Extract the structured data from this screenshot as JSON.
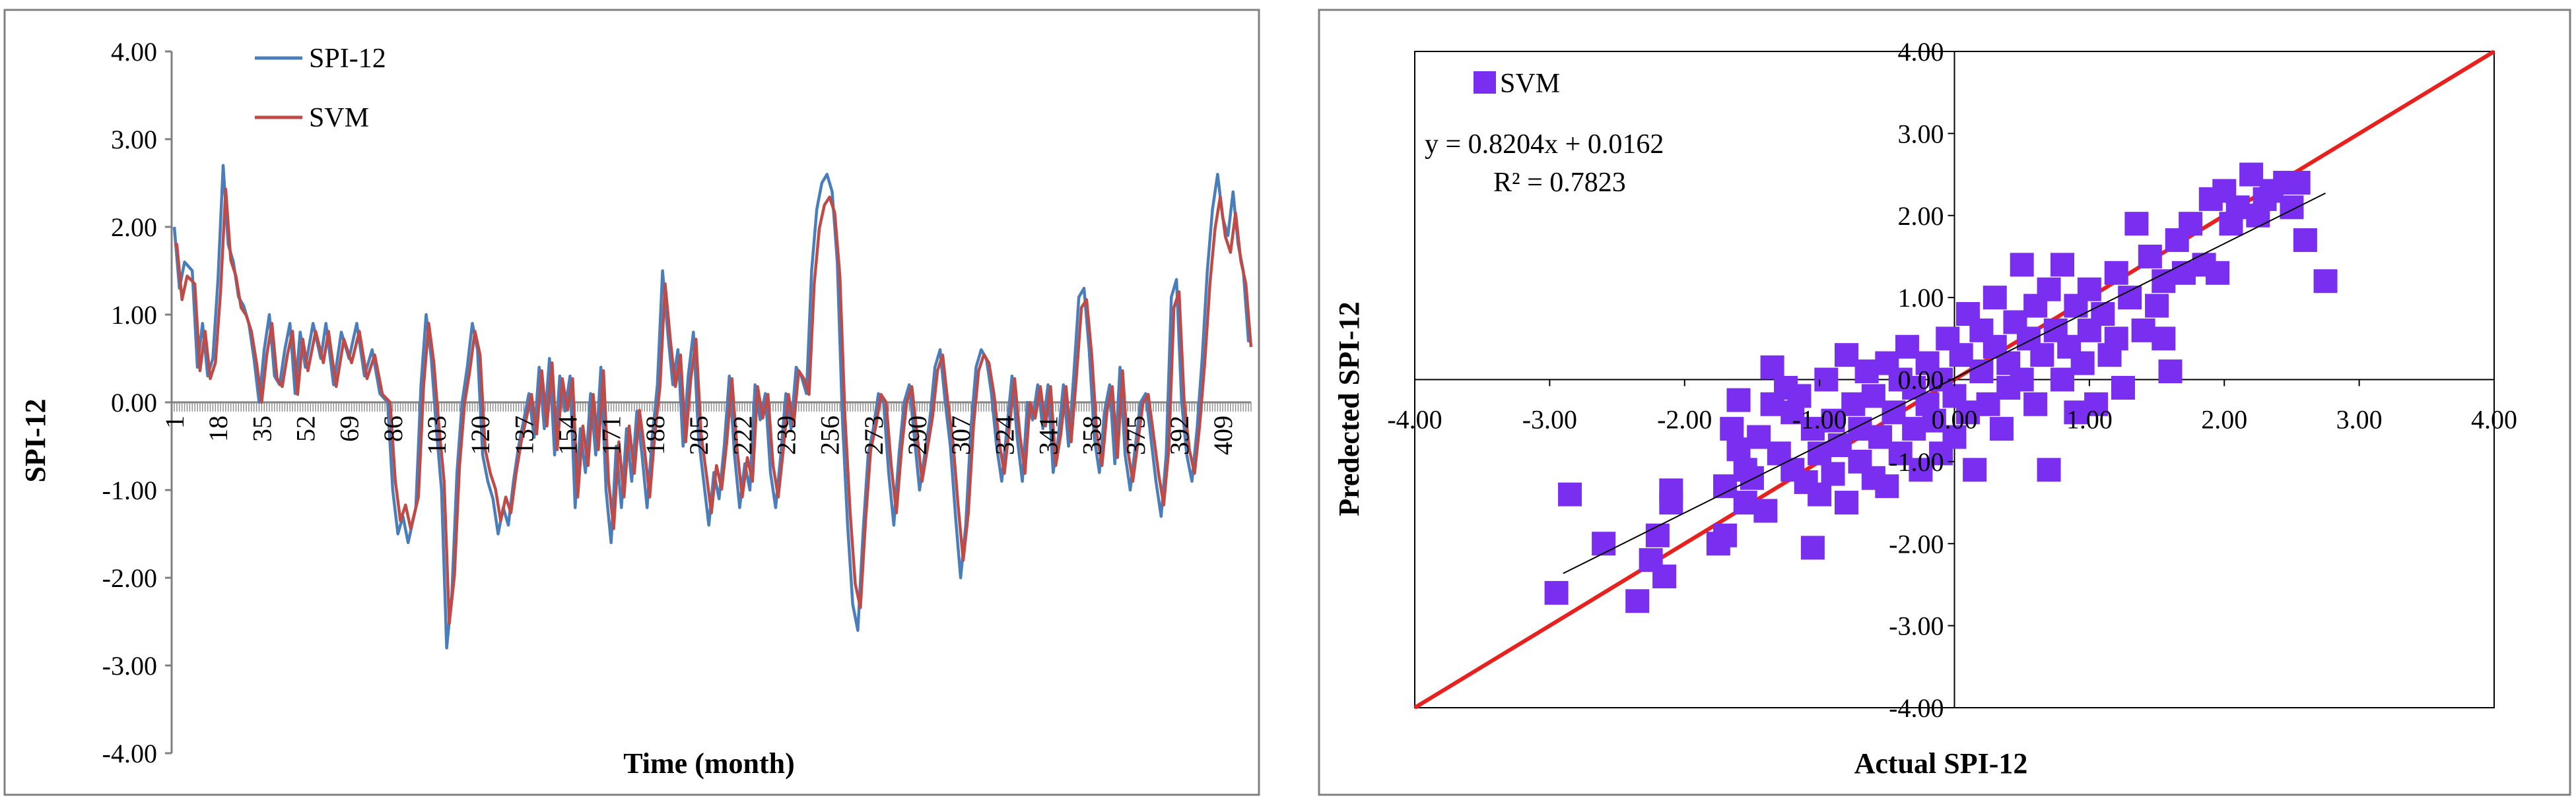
{
  "chart_data": [
    {
      "type": "line",
      "xlabel": "Time (month)",
      "ylabel": "SPI-12",
      "ylim": [
        -4,
        4
      ],
      "ytick_labels": [
        "4.00",
        "3.00",
        "2.00",
        "1.00",
        "0.00",
        "-1.00",
        "-2.00",
        "-3.00",
        "-4.00"
      ],
      "xlim": [
        1,
        420
      ],
      "xtick_labels": [
        "1",
        "18",
        "35",
        "52",
        "69",
        "86",
        "103",
        "120",
        "137",
        "154",
        "171",
        "188",
        "205",
        "222",
        "239",
        "256",
        "273",
        "290",
        "307",
        "324",
        "341",
        "358",
        "375",
        "392",
        "409"
      ],
      "anchors": [
        [
          1,
          2.0
        ],
        [
          3,
          1.3
        ],
        [
          5,
          1.6
        ],
        [
          8,
          1.5
        ],
        [
          10,
          0.4
        ],
        [
          12,
          0.9
        ],
        [
          14,
          0.3
        ],
        [
          16,
          0.5
        ],
        [
          18,
          1.4
        ],
        [
          20,
          2.7
        ],
        [
          22,
          1.8
        ],
        [
          24,
          1.6
        ],
        [
          26,
          1.2
        ],
        [
          28,
          1.1
        ],
        [
          30,
          0.9
        ],
        [
          32,
          0.5
        ],
        [
          34,
          0.0
        ],
        [
          36,
          0.6
        ],
        [
          38,
          1.0
        ],
        [
          40,
          0.3
        ],
        [
          42,
          0.2
        ],
        [
          44,
          0.6
        ],
        [
          46,
          0.9
        ],
        [
          48,
          0.1
        ],
        [
          50,
          0.8
        ],
        [
          52,
          0.4
        ],
        [
          55,
          0.9
        ],
        [
          58,
          0.5
        ],
        [
          60,
          0.9
        ],
        [
          63,
          0.2
        ],
        [
          66,
          0.8
        ],
        [
          69,
          0.5
        ],
        [
          72,
          0.9
        ],
        [
          75,
          0.3
        ],
        [
          78,
          0.6
        ],
        [
          81,
          0.1
        ],
        [
          84,
          0.0
        ],
        [
          86,
          -1.0
        ],
        [
          88,
          -1.5
        ],
        [
          90,
          -1.3
        ],
        [
          92,
          -1.6
        ],
        [
          95,
          -1.2
        ],
        [
          97,
          0.2
        ],
        [
          99,
          1.0
        ],
        [
          101,
          0.5
        ],
        [
          103,
          -0.3
        ],
        [
          105,
          -1.0
        ],
        [
          107,
          -2.8
        ],
        [
          109,
          -2.2
        ],
        [
          111,
          -0.8
        ],
        [
          113,
          0.0
        ],
        [
          115,
          0.4
        ],
        [
          117,
          0.9
        ],
        [
          119,
          0.6
        ],
        [
          121,
          -0.6
        ],
        [
          123,
          -0.9
        ],
        [
          125,
          -1.1
        ],
        [
          127,
          -1.5
        ],
        [
          129,
          -1.2
        ],
        [
          131,
          -1.4
        ],
        [
          133,
          -0.9
        ],
        [
          135,
          -0.5
        ],
        [
          137,
          -0.2
        ],
        [
          139,
          0.1
        ],
        [
          141,
          -0.4
        ],
        [
          143,
          0.4
        ],
        [
          145,
          -0.3
        ],
        [
          147,
          0.5
        ],
        [
          149,
          -0.6
        ],
        [
          151,
          0.3
        ],
        [
          153,
          -0.1
        ],
        [
          155,
          0.3
        ],
        [
          157,
          -1.2
        ],
        [
          159,
          -0.3
        ],
        [
          161,
          -0.8
        ],
        [
          163,
          0.1
        ],
        [
          165,
          -0.6
        ],
        [
          167,
          0.4
        ],
        [
          169,
          -1.0
        ],
        [
          171,
          -1.6
        ],
        [
          173,
          -0.5
        ],
        [
          175,
          -1.2
        ],
        [
          177,
          -0.3
        ],
        [
          179,
          -0.9
        ],
        [
          181,
          -0.1
        ],
        [
          183,
          -0.6
        ],
        [
          185,
          -1.2
        ],
        [
          187,
          -0.4
        ],
        [
          189,
          0.2
        ],
        [
          191,
          1.5
        ],
        [
          193,
          0.8
        ],
        [
          195,
          0.2
        ],
        [
          197,
          0.6
        ],
        [
          199,
          -0.5
        ],
        [
          201,
          0.3
        ],
        [
          203,
          0.8
        ],
        [
          205,
          -0.4
        ],
        [
          207,
          -0.9
        ],
        [
          209,
          -1.4
        ],
        [
          211,
          -0.8
        ],
        [
          213,
          -1.1
        ],
        [
          215,
          -0.5
        ],
        [
          217,
          0.3
        ],
        [
          219,
          -0.6
        ],
        [
          221,
          -1.2
        ],
        [
          223,
          -0.7
        ],
        [
          225,
          -1.0
        ],
        [
          227,
          0.2
        ],
        [
          229,
          -0.2
        ],
        [
          231,
          0.1
        ],
        [
          233,
          -0.8
        ],
        [
          235,
          -1.2
        ],
        [
          237,
          -0.6
        ],
        [
          239,
          0.1
        ],
        [
          241,
          -0.3
        ],
        [
          243,
          0.4
        ],
        [
          245,
          0.3
        ],
        [
          247,
          0.1
        ],
        [
          249,
          1.5
        ],
        [
          251,
          2.2
        ],
        [
          253,
          2.5
        ],
        [
          255,
          2.6
        ],
        [
          257,
          2.4
        ],
        [
          259,
          1.6
        ],
        [
          261,
          -0.2
        ],
        [
          263,
          -1.4
        ],
        [
          265,
          -2.3
        ],
        [
          267,
          -2.6
        ],
        [
          269,
          -1.5
        ],
        [
          271,
          -0.6
        ],
        [
          273,
          -0.3
        ],
        [
          275,
          0.1
        ],
        [
          277,
          0.0
        ],
        [
          279,
          -0.8
        ],
        [
          281,
          -1.4
        ],
        [
          283,
          -0.6
        ],
        [
          285,
          0.0
        ],
        [
          287,
          0.2
        ],
        [
          289,
          -0.4
        ],
        [
          291,
          -1.0
        ],
        [
          293,
          -0.6
        ],
        [
          295,
          -0.2
        ],
        [
          297,
          0.4
        ],
        [
          299,
          0.6
        ],
        [
          301,
          0.0
        ],
        [
          303,
          -0.5
        ],
        [
          305,
          -1.3
        ],
        [
          307,
          -2.0
        ],
        [
          309,
          -1.4
        ],
        [
          311,
          -0.3
        ],
        [
          313,
          0.4
        ],
        [
          315,
          0.6
        ],
        [
          317,
          0.5
        ],
        [
          319,
          0.1
        ],
        [
          321,
          -0.5
        ],
        [
          323,
          -0.9
        ],
        [
          325,
          -0.3
        ],
        [
          327,
          0.3
        ],
        [
          329,
          -0.4
        ],
        [
          331,
          -0.9
        ],
        [
          333,
          0.0
        ],
        [
          335,
          -0.2
        ],
        [
          337,
          0.2
        ],
        [
          339,
          -0.3
        ],
        [
          341,
          0.2
        ],
        [
          343,
          -0.8
        ],
        [
          345,
          -0.4
        ],
        [
          347,
          0.2
        ],
        [
          349,
          -0.5
        ],
        [
          351,
          0.3
        ],
        [
          353,
          1.2
        ],
        [
          355,
          1.3
        ],
        [
          357,
          0.6
        ],
        [
          359,
          -0.4
        ],
        [
          361,
          -0.8
        ],
        [
          363,
          -0.1
        ],
        [
          365,
          0.2
        ],
        [
          367,
          -0.7
        ],
        [
          369,
          0.4
        ],
        [
          371,
          -0.6
        ],
        [
          373,
          -1.0
        ],
        [
          375,
          -0.5
        ],
        [
          377,
          0.0
        ],
        [
          379,
          0.1
        ],
        [
          381,
          -0.4
        ],
        [
          383,
          -0.9
        ],
        [
          385,
          -1.3
        ],
        [
          387,
          -0.6
        ],
        [
          389,
          1.2
        ],
        [
          391,
          1.4
        ],
        [
          393,
          0.0
        ],
        [
          395,
          -0.6
        ],
        [
          397,
          -0.9
        ],
        [
          399,
          -0.3
        ],
        [
          401,
          0.5
        ],
        [
          403,
          1.5
        ],
        [
          405,
          2.2
        ],
        [
          407,
          2.6
        ],
        [
          409,
          2.1
        ],
        [
          411,
          1.9
        ],
        [
          413,
          2.4
        ],
        [
          415,
          1.8
        ],
        [
          417,
          1.5
        ],
        [
          419,
          0.7
        ]
      ],
      "series": [
        {
          "name": "SPI-12",
          "color": "#4a7ebb",
          "lag": 0,
          "scale": 1.0
        },
        {
          "name": "SVM",
          "color": "#be4b48",
          "lag": 1,
          "scale": 0.9
        }
      ]
    },
    {
      "type": "scatter",
      "xlabel": "Actual SPI-12",
      "ylabel": "Predected SPI-12",
      "xlim": [
        -4,
        4
      ],
      "ylim": [
        -4,
        4
      ],
      "xtick_labels": [
        "-4.00",
        "-3.00",
        "-2.00",
        "-1.00",
        "0.00",
        "1.00",
        "2.00",
        "3.00",
        "4.00"
      ],
      "ytick_labels": [
        "4.00",
        "3.00",
        "2.00",
        "1.00",
        "0.00",
        "-1.00",
        "-2.00",
        "-3.00",
        "-4.00"
      ],
      "legend": "SVM",
      "marker_color": "#7a2ff0",
      "ideal_line_color": "#e8211e",
      "trendline": {
        "slope": 0.8204,
        "intercept": 0.0162,
        "x_range": [
          -2.9,
          2.75
        ]
      },
      "equation": "y = 0.8204x + 0.0162",
      "r2": "R² = 0.7823",
      "points": [
        [
          -2.95,
          -2.6
        ],
        [
          -2.85,
          -1.4
        ],
        [
          -2.6,
          -2.0
        ],
        [
          -2.35,
          -2.7
        ],
        [
          -2.25,
          -2.2
        ],
        [
          -2.15,
          -2.4
        ],
        [
          -2.2,
          -1.9
        ],
        [
          -2.1,
          -1.5
        ],
        [
          -2.1,
          -1.35
        ],
        [
          -1.75,
          -2.0
        ],
        [
          -1.7,
          -1.9
        ],
        [
          -1.7,
          -1.3
        ],
        [
          -1.65,
          -0.6
        ],
        [
          -1.6,
          -0.25
        ],
        [
          -1.6,
          -0.85
        ],
        [
          -1.55,
          -1.1
        ],
        [
          -1.55,
          -1.5
        ],
        [
          -1.5,
          -1.2
        ],
        [
          -1.45,
          -0.7
        ],
        [
          -1.4,
          -1.6
        ],
        [
          -1.35,
          -0.3
        ],
        [
          -1.35,
          0.15
        ],
        [
          -1.3,
          -0.9
        ],
        [
          -1.25,
          -0.1
        ],
        [
          -1.2,
          -1.1
        ],
        [
          -1.2,
          -0.4
        ],
        [
          -1.15,
          -0.2
        ],
        [
          -1.1,
          -1.25
        ],
        [
          -1.05,
          -0.6
        ],
        [
          -1.05,
          -2.05
        ],
        [
          -1.0,
          -0.9
        ],
        [
          -1.0,
          -1.4
        ],
        [
          -0.95,
          0.0
        ],
        [
          -0.9,
          -0.5
        ],
        [
          -0.9,
          -1.15
        ],
        [
          -0.85,
          -0.8
        ],
        [
          -0.8,
          -1.5
        ],
        [
          -0.8,
          0.3
        ],
        [
          -0.75,
          -0.3
        ],
        [
          -0.7,
          -1.0
        ],
        [
          -0.7,
          -0.6
        ],
        [
          -0.65,
          0.1
        ],
        [
          -0.6,
          -0.2
        ],
        [
          -0.6,
          -1.2
        ],
        [
          -0.55,
          -0.7
        ],
        [
          -0.5,
          0.2
        ],
        [
          -0.5,
          -1.3
        ],
        [
          -0.45,
          -0.4
        ],
        [
          -0.4,
          -0.9
        ],
        [
          -0.4,
          0.0
        ],
        [
          -0.35,
          0.4
        ],
        [
          -0.3,
          -0.1
        ],
        [
          -0.3,
          -0.6
        ],
        [
          -0.25,
          -1.1
        ],
        [
          -0.2,
          -0.3
        ],
        [
          -0.2,
          0.2
        ],
        [
          -0.15,
          -0.5
        ],
        [
          -0.1,
          0.0
        ],
        [
          -0.1,
          -0.9
        ],
        [
          -0.05,
          0.5
        ],
        [
          0.0,
          -0.2
        ],
        [
          0.0,
          -0.7
        ],
        [
          0.05,
          0.3
        ],
        [
          0.1,
          0.8
        ],
        [
          0.1,
          -0.4
        ],
        [
          0.15,
          -1.1
        ],
        [
          0.2,
          0.1
        ],
        [
          0.2,
          0.6
        ],
        [
          0.25,
          -0.3
        ],
        [
          0.3,
          0.4
        ],
        [
          0.3,
          1.0
        ],
        [
          0.35,
          -0.6
        ],
        [
          0.4,
          0.2
        ],
        [
          0.4,
          -0.1
        ],
        [
          0.45,
          0.7
        ],
        [
          0.5,
          1.4
        ],
        [
          0.5,
          0.0
        ],
        [
          0.55,
          0.5
        ],
        [
          0.6,
          -0.3
        ],
        [
          0.6,
          0.9
        ],
        [
          0.65,
          0.3
        ],
        [
          0.7,
          -1.1
        ],
        [
          0.7,
          1.1
        ],
        [
          0.75,
          0.6
        ],
        [
          0.8,
          0.0
        ],
        [
          0.8,
          1.4
        ],
        [
          0.85,
          0.4
        ],
        [
          0.9,
          0.9
        ],
        [
          0.9,
          -0.4
        ],
        [
          0.95,
          0.2
        ],
        [
          1.0,
          1.1
        ],
        [
          1.0,
          0.6
        ],
        [
          1.05,
          -0.3
        ],
        [
          1.1,
          0.8
        ],
        [
          1.15,
          0.3
        ],
        [
          1.2,
          1.3
        ],
        [
          1.2,
          0.5
        ],
        [
          1.25,
          -0.1
        ],
        [
          1.3,
          1.0
        ],
        [
          1.35,
          1.9
        ],
        [
          1.4,
          0.6
        ],
        [
          1.45,
          1.5
        ],
        [
          1.5,
          0.9
        ],
        [
          1.55,
          1.2
        ],
        [
          1.55,
          0.5
        ],
        [
          1.6,
          0.1
        ],
        [
          1.65,
          1.7
        ],
        [
          1.7,
          1.3
        ],
        [
          1.75,
          1.9
        ],
        [
          1.85,
          1.4
        ],
        [
          1.9,
          2.2
        ],
        [
          1.95,
          1.3
        ],
        [
          2.0,
          2.3
        ],
        [
          2.05,
          1.9
        ],
        [
          2.1,
          2.1
        ],
        [
          2.2,
          2.5
        ],
        [
          2.25,
          2.0
        ],
        [
          2.3,
          2.2
        ],
        [
          2.35,
          2.3
        ],
        [
          2.45,
          2.4
        ],
        [
          2.5,
          2.1
        ],
        [
          2.55,
          2.4
        ],
        [
          2.6,
          1.7
        ],
        [
          2.75,
          1.2
        ]
      ]
    }
  ]
}
